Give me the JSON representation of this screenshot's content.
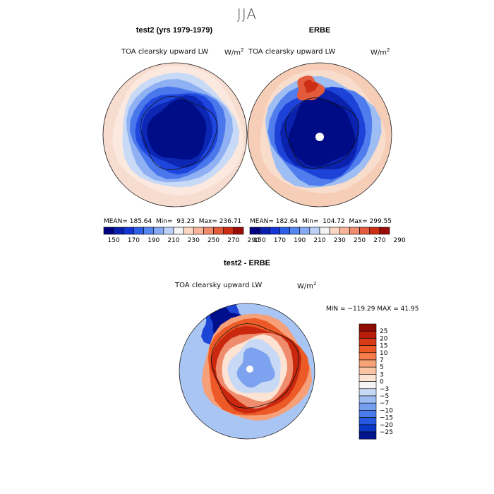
{
  "figure": {
    "title": "JJA",
    "units_base": "W/m",
    "units_exp": "2"
  },
  "chart_data": [
    {
      "type": "heatmap",
      "title": "test2 (yrs 1979-1979)",
      "subtitle": "TOA clearsky upward LW",
      "stats": {
        "mean_label": "MEAN=",
        "mean": "185.64",
        "min_label": "Min=",
        "min": "93.23",
        "max_label": "Max=",
        "max": "236.71"
      },
      "colorbar_ticks": [
        "150",
        "170",
        "190",
        "210",
        "230",
        "250",
        "270",
        "290"
      ]
    },
    {
      "type": "heatmap",
      "title": "ERBE",
      "subtitle": "TOA clearsky upward LW",
      "stats": {
        "mean_label": "MEAN=",
        "mean": "182.64",
        "min_label": "Min=",
        "min": "104.72",
        "max_label": "Max=",
        "max": "299.55"
      },
      "colorbar_ticks": [
        "150",
        "170",
        "190",
        "210",
        "230",
        "250",
        "270",
        "290"
      ]
    },
    {
      "type": "heatmap",
      "title": "test2 - ERBE",
      "subtitle": "TOA clearsky upward LW",
      "range_text": "MIN = −119.29  MAX =  41.95",
      "colorbar_ticks": [
        "25",
        "20",
        "15",
        "10",
        "7",
        "5",
        "3",
        "0",
        "−3",
        "−5",
        "−7",
        "−10",
        "−15",
        "−20",
        "−25"
      ]
    }
  ],
  "colors": {
    "abs_scale": [
      "#000080",
      "#0a1fae",
      "#1434d6",
      "#2e5fe8",
      "#5585f0",
      "#86aaf3",
      "#bcd1f7",
      "#f2f3f5",
      "#fcd8c4",
      "#f8b59b",
      "#f08c6e",
      "#e35a3c",
      "#cc2f14",
      "#9a0c08"
    ],
    "diff_scale": [
      "#8e0c04",
      "#b81d0a",
      "#d63a16",
      "#ec5a27",
      "#f57e4c",
      "#f8a277",
      "#fbc5a5",
      "#fde3d3",
      "#f4f4f4",
      "#c8d9f5",
      "#9dbcf2",
      "#759df0",
      "#4c7ceb",
      "#2557e0",
      "#0b37c8",
      "#00148c"
    ]
  }
}
